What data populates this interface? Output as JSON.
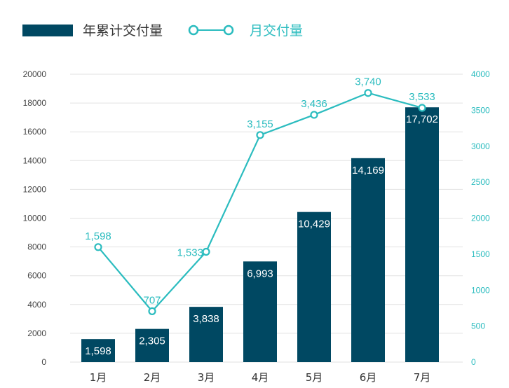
{
  "colors": {
    "bar": "#004862",
    "line": "#2bbcbf",
    "grid": "#e2e2e2",
    "background": "#ffffff"
  },
  "legend": {
    "bar_label": "年累计交付量",
    "line_label": "月交付量"
  },
  "chart_data": {
    "type": "bar",
    "categories": [
      "1月",
      "2月",
      "3月",
      "4月",
      "5月",
      "6月",
      "7月"
    ],
    "series": [
      {
        "name": "年累计交付量",
        "type": "bar",
        "axis": "left",
        "values": [
          1598,
          2305,
          3838,
          6993,
          10429,
          14169,
          17702
        ],
        "labels": [
          "1,598",
          "2,305",
          "3,838",
          "6,993",
          "10,429",
          "14,169",
          "17,702"
        ]
      },
      {
        "name": "月交付量",
        "type": "line",
        "axis": "right",
        "values": [
          1598,
          707,
          1533,
          3155,
          3436,
          3740,
          3533
        ],
        "labels": [
          "1,598",
          "707",
          "1,533",
          "3,155",
          "3,436",
          "3,740",
          "3,533"
        ]
      }
    ],
    "ylim_left": [
      0,
      20000
    ],
    "ylim_right": [
      0,
      4000
    ],
    "yticks_left": [
      "0",
      "2000",
      "4000",
      "6000",
      "8000",
      "10000",
      "12000",
      "14000",
      "16000",
      "18000",
      "20000"
    ],
    "yticks_right": [
      "0",
      "500",
      "1000",
      "1500",
      "2000",
      "2500",
      "3000",
      "3500",
      "4000"
    ],
    "grid": true,
    "legend_position": "top-left"
  }
}
